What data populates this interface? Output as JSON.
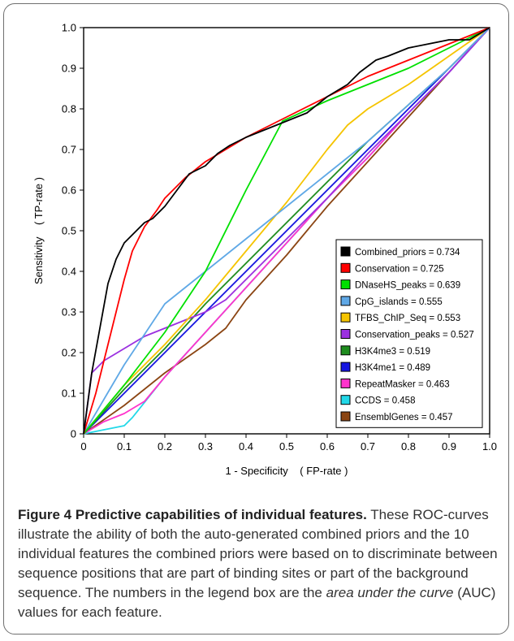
{
  "chart_data": {
    "type": "line",
    "xlabel": "1 - Specificity    ( FP-rate )",
    "ylabel": "Sensitivity    ( TP-rate )",
    "xlim": [
      0,
      1
    ],
    "ylim": [
      0,
      1
    ],
    "x_ticks": [
      "0",
      "0.1",
      "0.2",
      "0.3",
      "0.4",
      "0.5",
      "0.6",
      "0.7",
      "0.8",
      "0.9",
      "1.0"
    ],
    "y_ticks": [
      "0",
      "0.1",
      "0.2",
      "0.3",
      "0.4",
      "0.5",
      "0.6",
      "0.7",
      "0.8",
      "0.9",
      "1.0"
    ],
    "grid": false,
    "legend_position": "bottom-right",
    "series": [
      {
        "name": "Combined_priors = 0.734",
        "color": "#000000",
        "x": [
          0,
          0.02,
          0.04,
          0.06,
          0.08,
          0.1,
          0.12,
          0.15,
          0.17,
          0.2,
          0.23,
          0.26,
          0.3,
          0.33,
          0.36,
          0.4,
          0.45,
          0.5,
          0.55,
          0.6,
          0.65,
          0.68,
          0.72,
          0.75,
          0.8,
          0.85,
          0.9,
          0.95,
          1.0
        ],
        "y": [
          0,
          0.15,
          0.26,
          0.37,
          0.43,
          0.47,
          0.49,
          0.52,
          0.53,
          0.56,
          0.6,
          0.64,
          0.66,
          0.69,
          0.71,
          0.73,
          0.75,
          0.77,
          0.79,
          0.83,
          0.86,
          0.89,
          0.92,
          0.93,
          0.95,
          0.96,
          0.97,
          0.97,
          1.0
        ]
      },
      {
        "name": "Conservation = 0.725",
        "color": "#ff0000",
        "x": [
          0,
          0.03,
          0.06,
          0.08,
          0.1,
          0.12,
          0.15,
          0.18,
          0.2,
          0.25,
          0.3,
          0.35,
          0.4,
          0.5,
          0.6,
          0.7,
          0.8,
          0.9,
          1.0
        ],
        "y": [
          0,
          0.1,
          0.22,
          0.3,
          0.38,
          0.45,
          0.51,
          0.55,
          0.58,
          0.63,
          0.67,
          0.7,
          0.73,
          0.78,
          0.83,
          0.88,
          0.92,
          0.96,
          1.0
        ]
      },
      {
        "name": "DNaseHS_peaks = 0.639",
        "color": "#00e000",
        "x": [
          0,
          0.1,
          0.2,
          0.3,
          0.4,
          0.49,
          0.6,
          0.7,
          0.8,
          0.9,
          1.0
        ],
        "y": [
          0,
          0.12,
          0.25,
          0.4,
          0.6,
          0.77,
          0.82,
          0.86,
          0.9,
          0.95,
          1.0
        ]
      },
      {
        "name": "CpG_islands = 0.555",
        "color": "#5fa8e6",
        "x": [
          0,
          0.1,
          0.2,
          0.3,
          0.4,
          0.5,
          0.6,
          0.7,
          0.8,
          0.9,
          1.0
        ],
        "y": [
          0,
          0.17,
          0.32,
          0.4,
          0.48,
          0.56,
          0.64,
          0.72,
          0.81,
          0.9,
          1.0
        ]
      },
      {
        "name": "TFBS_ChIP_Seq = 0.553",
        "color": "#f5c400",
        "x": [
          0,
          0.1,
          0.2,
          0.3,
          0.4,
          0.5,
          0.6,
          0.65,
          0.7,
          0.8,
          0.9,
          1.0
        ],
        "y": [
          0,
          0.12,
          0.22,
          0.33,
          0.45,
          0.57,
          0.7,
          0.76,
          0.8,
          0.86,
          0.93,
          1.0
        ]
      },
      {
        "name": "Conservation_peaks = 0.527",
        "color": "#9b30e0",
        "x": [
          0,
          0.02,
          0.05,
          0.1,
          0.15,
          0.2,
          0.25,
          0.3,
          0.35,
          0.4,
          0.5,
          0.6,
          0.7,
          0.8,
          0.9,
          1.0
        ],
        "y": [
          0,
          0.15,
          0.18,
          0.21,
          0.24,
          0.26,
          0.28,
          0.3,
          0.33,
          0.38,
          0.48,
          0.58,
          0.69,
          0.79,
          0.89,
          1.0
        ]
      },
      {
        "name": "H3K4me3 = 0.519",
        "color": "#1e8c1e",
        "x": [
          0,
          0.1,
          0.2,
          0.3,
          0.4,
          0.5,
          0.6,
          0.7,
          0.8,
          0.9,
          1.0
        ],
        "y": [
          0,
          0.11,
          0.21,
          0.32,
          0.42,
          0.52,
          0.62,
          0.72,
          0.81,
          0.9,
          1.0
        ]
      },
      {
        "name": "H3K4me1 = 0.489",
        "color": "#1515e0",
        "x": [
          0,
          0.1,
          0.2,
          0.3,
          0.4,
          0.5,
          0.6,
          0.7,
          0.8,
          0.9,
          1.0
        ],
        "y": [
          0,
          0.1,
          0.2,
          0.3,
          0.4,
          0.5,
          0.6,
          0.7,
          0.8,
          0.9,
          1.0
        ]
      },
      {
        "name": "RepeatMasker = 0.463",
        "color": "#ff33cc",
        "x": [
          0,
          0.05,
          0.1,
          0.15,
          0.2,
          0.3,
          0.4,
          0.5,
          0.6,
          0.7,
          0.8,
          0.9,
          1.0
        ],
        "y": [
          0,
          0.03,
          0.05,
          0.08,
          0.14,
          0.25,
          0.36,
          0.47,
          0.58,
          0.68,
          0.79,
          0.89,
          1.0
        ]
      },
      {
        "name": "CCDS = 0.458",
        "color": "#22d8e8",
        "x": [
          0,
          0.05,
          0.1,
          0.12,
          0.2,
          0.3,
          0.4,
          0.5,
          0.6,
          0.7,
          0.8,
          0.9,
          1.0
        ],
        "y": [
          0,
          0.01,
          0.02,
          0.04,
          0.14,
          0.25,
          0.36,
          0.47,
          0.58,
          0.68,
          0.79,
          0.89,
          1.0
        ]
      },
      {
        "name": "EnsemblGenes = 0.457",
        "color": "#8b4513",
        "x": [
          0,
          0.1,
          0.2,
          0.3,
          0.35,
          0.4,
          0.5,
          0.6,
          0.7,
          0.8,
          0.9,
          1.0
        ],
        "y": [
          0,
          0.07,
          0.15,
          0.22,
          0.26,
          0.33,
          0.44,
          0.56,
          0.67,
          0.78,
          0.89,
          1.0
        ]
      }
    ]
  },
  "caption": {
    "title": "Figure 4 Predictive capabilities of individual features.",
    "part1": " These ROC-curves illustrate the ability of both the auto-generated combined priors and the 10 individual features the combined priors were based on to discriminate between sequence positions that are part of binding sites or part of the background sequence. The numbers in the legend box are the ",
    "emphasis": "area under the curve",
    "part2": " (AUC) values for each feature."
  }
}
